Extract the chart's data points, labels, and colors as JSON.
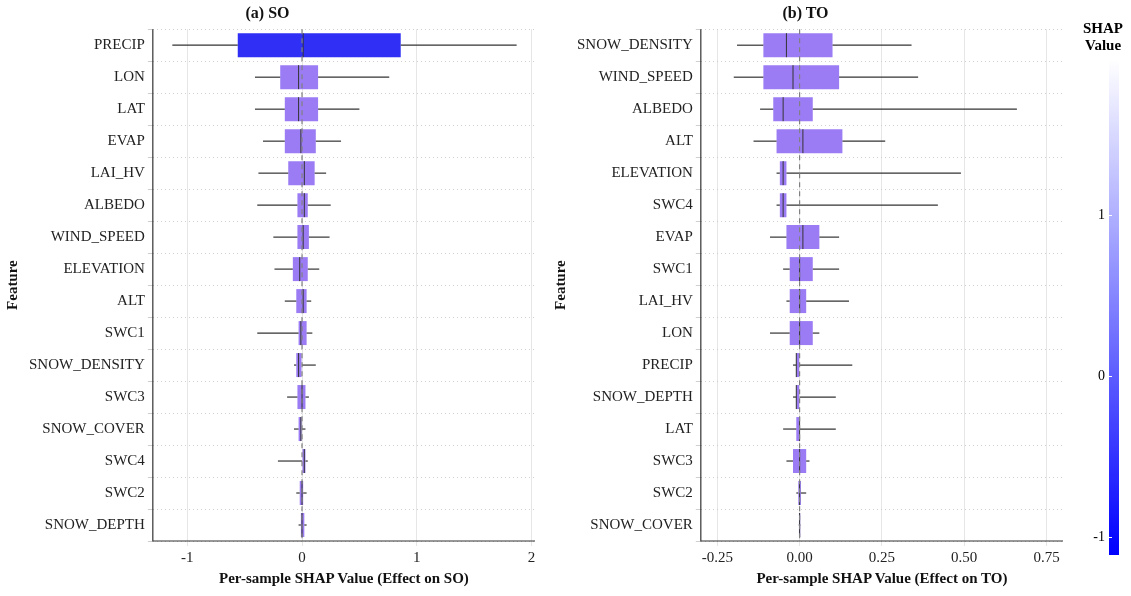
{
  "chart_data": [
    {
      "type": "box",
      "orientation": "horizontal",
      "title": "(a) SO",
      "xlabel": "Per-sample SHAP Value (Effect on SO)",
      "ylabel": "Feature",
      "categories": [
        "PRECIP",
        "LON",
        "LAT",
        "EVAP",
        "LAI_HV",
        "ALBEDO",
        "WIND_SPEED",
        "ELEVATION",
        "ALT",
        "SWC1",
        "SNOW_DENSITY",
        "SWC3",
        "SNOW_COVER",
        "SWC4",
        "SWC2",
        "SNOW_DEPTH"
      ],
      "boxes": [
        {
          "low": -1.13,
          "q1": -0.56,
          "median": 0.01,
          "q3": 0.86,
          "high": 1.87
        },
        {
          "low": -0.41,
          "q1": -0.19,
          "median": -0.03,
          "q3": 0.14,
          "high": 0.76
        },
        {
          "low": -0.41,
          "q1": -0.15,
          "median": -0.03,
          "q3": 0.14,
          "high": 0.5
        },
        {
          "low": -0.34,
          "q1": -0.15,
          "median": -0.01,
          "q3": 0.12,
          "high": 0.34
        },
        {
          "low": -0.38,
          "q1": -0.12,
          "median": 0.02,
          "q3": 0.11,
          "high": 0.21
        },
        {
          "low": -0.39,
          "q1": -0.04,
          "median": 0.02,
          "q3": 0.05,
          "high": 0.25
        },
        {
          "low": -0.25,
          "q1": -0.04,
          "median": 0.01,
          "q3": 0.06,
          "high": 0.24
        },
        {
          "low": -0.24,
          "q1": -0.08,
          "median": -0.02,
          "q3": 0.05,
          "high": 0.15
        },
        {
          "low": -0.15,
          "q1": -0.05,
          "median": 0.01,
          "q3": 0.04,
          "high": 0.08
        },
        {
          "low": -0.39,
          "q1": -0.03,
          "median": -0.01,
          "q3": 0.04,
          "high": 0.09
        },
        {
          "low": -0.07,
          "q1": -0.05,
          "median": -0.03,
          "q3": 0.0,
          "high": 0.12
        },
        {
          "low": -0.13,
          "q1": -0.04,
          "median": 0.0,
          "q3": 0.03,
          "high": 0.06
        },
        {
          "low": -0.07,
          "q1": -0.03,
          "median": -0.01,
          "q3": 0.0,
          "high": 0.03
        },
        {
          "low": -0.21,
          "q1": 0.0,
          "median": 0.02,
          "q3": 0.03,
          "high": 0.05
        },
        {
          "low": -0.05,
          "q1": -0.02,
          "median": 0.0,
          "q3": 0.01,
          "high": 0.04
        },
        {
          "low": -0.03,
          "q1": -0.01,
          "median": 0.0,
          "q3": 0.02,
          "high": 0.04
        }
      ],
      "colors": [
        "#2f2ff5",
        "#9b7cf4",
        "#9b7cf4",
        "#9b7cf4",
        "#9b7cf4",
        "#9b7cf4",
        "#9b7cf4",
        "#9b7cf4",
        "#9b7cf4",
        "#9b7cf4",
        "#9b7cf4",
        "#9b7cf4",
        "#9b7cf4",
        "#9b7cf4",
        "#9b7cf4",
        "#9b7cf4"
      ],
      "xlim": [
        -1.3,
        2.03
      ],
      "xticks": [
        -1,
        0,
        1,
        2
      ],
      "grid": true,
      "ref_lines": [
        {
          "axis": "x",
          "value": 0,
          "line_style": "dashed",
          "color": "#808080"
        }
      ]
    },
    {
      "type": "box",
      "orientation": "horizontal",
      "title": "(b) TO",
      "xlabel": "Per-sample SHAP Value (Effect on TO)",
      "ylabel": "Feature",
      "categories": [
        "SNOW_DENSITY",
        "WIND_SPEED",
        "ALBEDO",
        "ALT",
        "ELEVATION",
        "SWC4",
        "EVAP",
        "SWC1",
        "LAI_HV",
        "LON",
        "PRECIP",
        "SNOW_DEPTH",
        "LAT",
        "SWC3",
        "SWC2",
        "SNOW_COVER"
      ],
      "boxes": [
        {
          "low": -0.19,
          "q1": -0.11,
          "median": -0.04,
          "q3": 0.1,
          "high": 0.34
        },
        {
          "low": -0.2,
          "q1": -0.11,
          "median": -0.02,
          "q3": 0.12,
          "high": 0.36
        },
        {
          "low": -0.12,
          "q1": -0.08,
          "median": -0.05,
          "q3": 0.04,
          "high": 0.66
        },
        {
          "low": -0.14,
          "q1": -0.07,
          "median": 0.01,
          "q3": 0.13,
          "high": 0.26
        },
        {
          "low": -0.07,
          "q1": -0.06,
          "median": -0.05,
          "q3": -0.04,
          "high": 0.49
        },
        {
          "low": -0.07,
          "q1": -0.06,
          "median": -0.05,
          "q3": -0.04,
          "high": 0.42
        },
        {
          "low": -0.09,
          "q1": -0.04,
          "median": 0.01,
          "q3": 0.06,
          "high": 0.12
        },
        {
          "low": -0.05,
          "q1": -0.03,
          "median": 0.0,
          "q3": 0.04,
          "high": 0.12
        },
        {
          "low": -0.04,
          "q1": -0.03,
          "median": 0.0,
          "q3": 0.02,
          "high": 0.15
        },
        {
          "low": -0.09,
          "q1": -0.03,
          "median": 0.0,
          "q3": 0.04,
          "high": 0.06
        },
        {
          "low": -0.02,
          "q1": -0.01,
          "median": -0.01,
          "q3": 0.0,
          "high": 0.16
        },
        {
          "low": -0.02,
          "q1": -0.01,
          "median": -0.01,
          "q3": 0.0,
          "high": 0.11
        },
        {
          "low": -0.05,
          "q1": -0.01,
          "median": 0.0,
          "q3": 0.0,
          "high": 0.11
        },
        {
          "low": -0.04,
          "q1": -0.02,
          "median": 0.0,
          "q3": 0.02,
          "high": 0.03
        },
        {
          "low": -0.01,
          "q1": -0.004,
          "median": 0.0,
          "q3": 0.004,
          "high": 0.02
        },
        {
          "low": -0.003,
          "q1": -0.002,
          "median": 0.0,
          "q3": 0.002,
          "high": 0.003
        }
      ],
      "colors": [
        "#9b7cf4",
        "#9b7cf4",
        "#9b7cf4",
        "#9b7cf4",
        "#9b7cf4",
        "#9b7cf4",
        "#9b7cf4",
        "#9b7cf4",
        "#9b7cf4",
        "#9b7cf4",
        "#9b7cf4",
        "#9b7cf4",
        "#9b7cf4",
        "#9b7cf4",
        "#9b7cf4",
        "#9b7cf4"
      ],
      "xlim": [
        -0.3,
        0.8
      ],
      "xticks": [
        {
          "value": -0.25,
          "label": "-0.25"
        },
        {
          "value": 0,
          "label": "0.00"
        },
        {
          "value": 0.25,
          "label": "0.25"
        },
        {
          "value": 0.5,
          "label": "0.50"
        },
        {
          "value": 0.75,
          "label": "0.75"
        }
      ],
      "grid": true,
      "ref_lines": [
        {
          "axis": "x",
          "value": 0,
          "line_style": "dashed",
          "color": "#808080"
        }
      ],
      "clabel": "SHAP Value",
      "clim": [
        -1.11,
        1.96
      ],
      "cticks": [
        -1,
        0,
        1
      ]
    }
  ]
}
